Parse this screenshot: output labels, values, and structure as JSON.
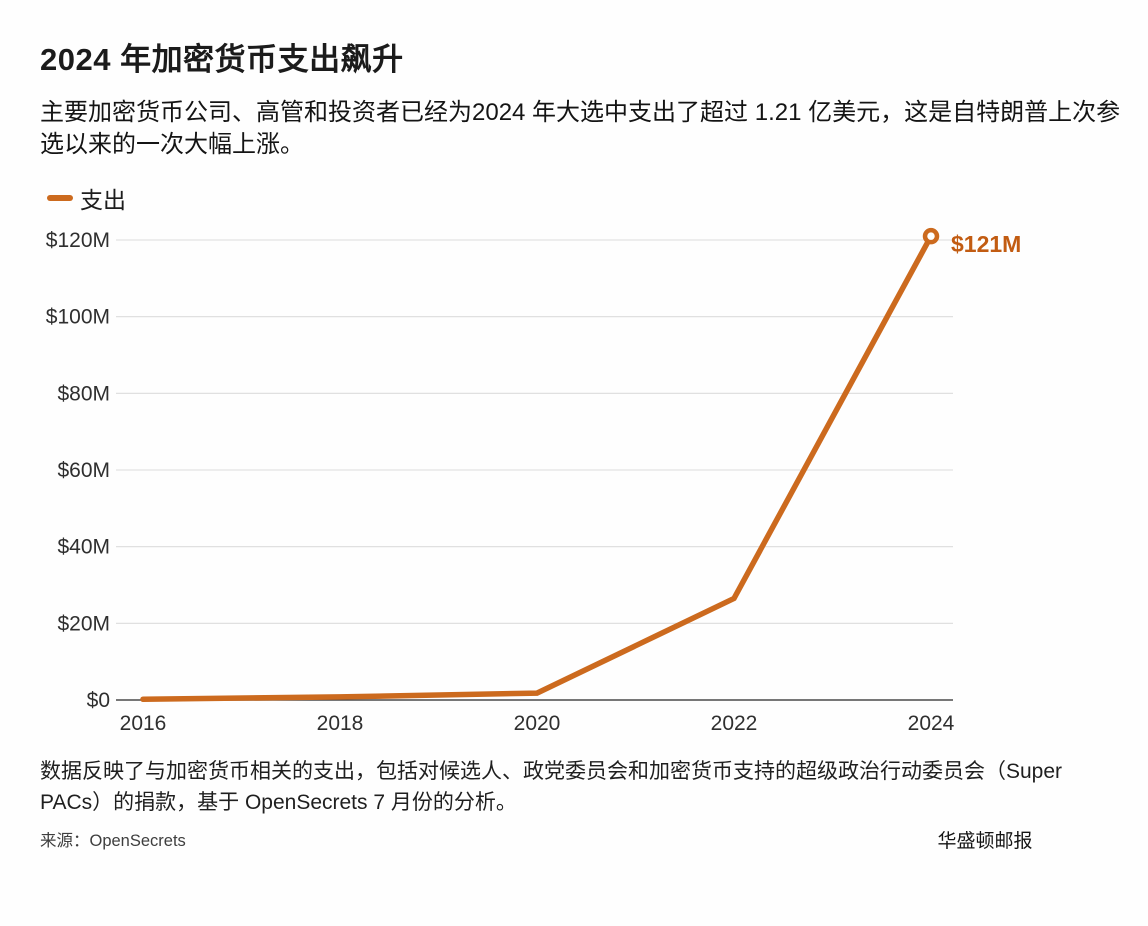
{
  "header": {
    "title": "2024 年加密货币支出飙升",
    "subtitle": "主要加密货币公司、高管和投资者已经为2024 年大选中支出了超过 1.21 亿美元，这是自特朗普上次参选以来的一次大幅上涨。"
  },
  "legend": {
    "label": "支出",
    "color": "#CC6A1E"
  },
  "chart_data": {
    "type": "line",
    "title": "2024 年加密货币支出飙升",
    "x": [
      2016,
      2018,
      2020,
      2022,
      2024
    ],
    "x_tick_labels": [
      "2016",
      "2018",
      "2020",
      "2022",
      "2024"
    ],
    "series": [
      {
        "name": "支出",
        "values": [
          0.2,
          0.8,
          1.8,
          26.5,
          121
        ],
        "color": "#CC6A1E"
      }
    ],
    "y_ticks": [
      0,
      20,
      40,
      60,
      80,
      100,
      120
    ],
    "y_tick_labels": [
      "$0",
      "$20M",
      "$40M",
      "$60M",
      "$80M",
      "$100M",
      "$120M"
    ],
    "xlim": [
      2016,
      2024
    ],
    "ylim": [
      0,
      125
    ],
    "unit": "million USD",
    "grid": true,
    "legend_position": "top-left",
    "end_label": "$121M",
    "end_label_color": "#C25C12",
    "gridline_color": "#dcdcdc",
    "axis_color": "#4a4a4a",
    "tick_label_color": "#2f2f2f"
  },
  "notes": {
    "text": "数据反映了与加密货币相关的支出，包括对候选人、政党委员会和加密货币支持的超级政治行动委员会（Super PACs）的捐款，基于 OpenSecrets 7 月份的分析。"
  },
  "footer": {
    "source": "来源：OpenSecrets",
    "attribution": "华盛顿邮报"
  }
}
